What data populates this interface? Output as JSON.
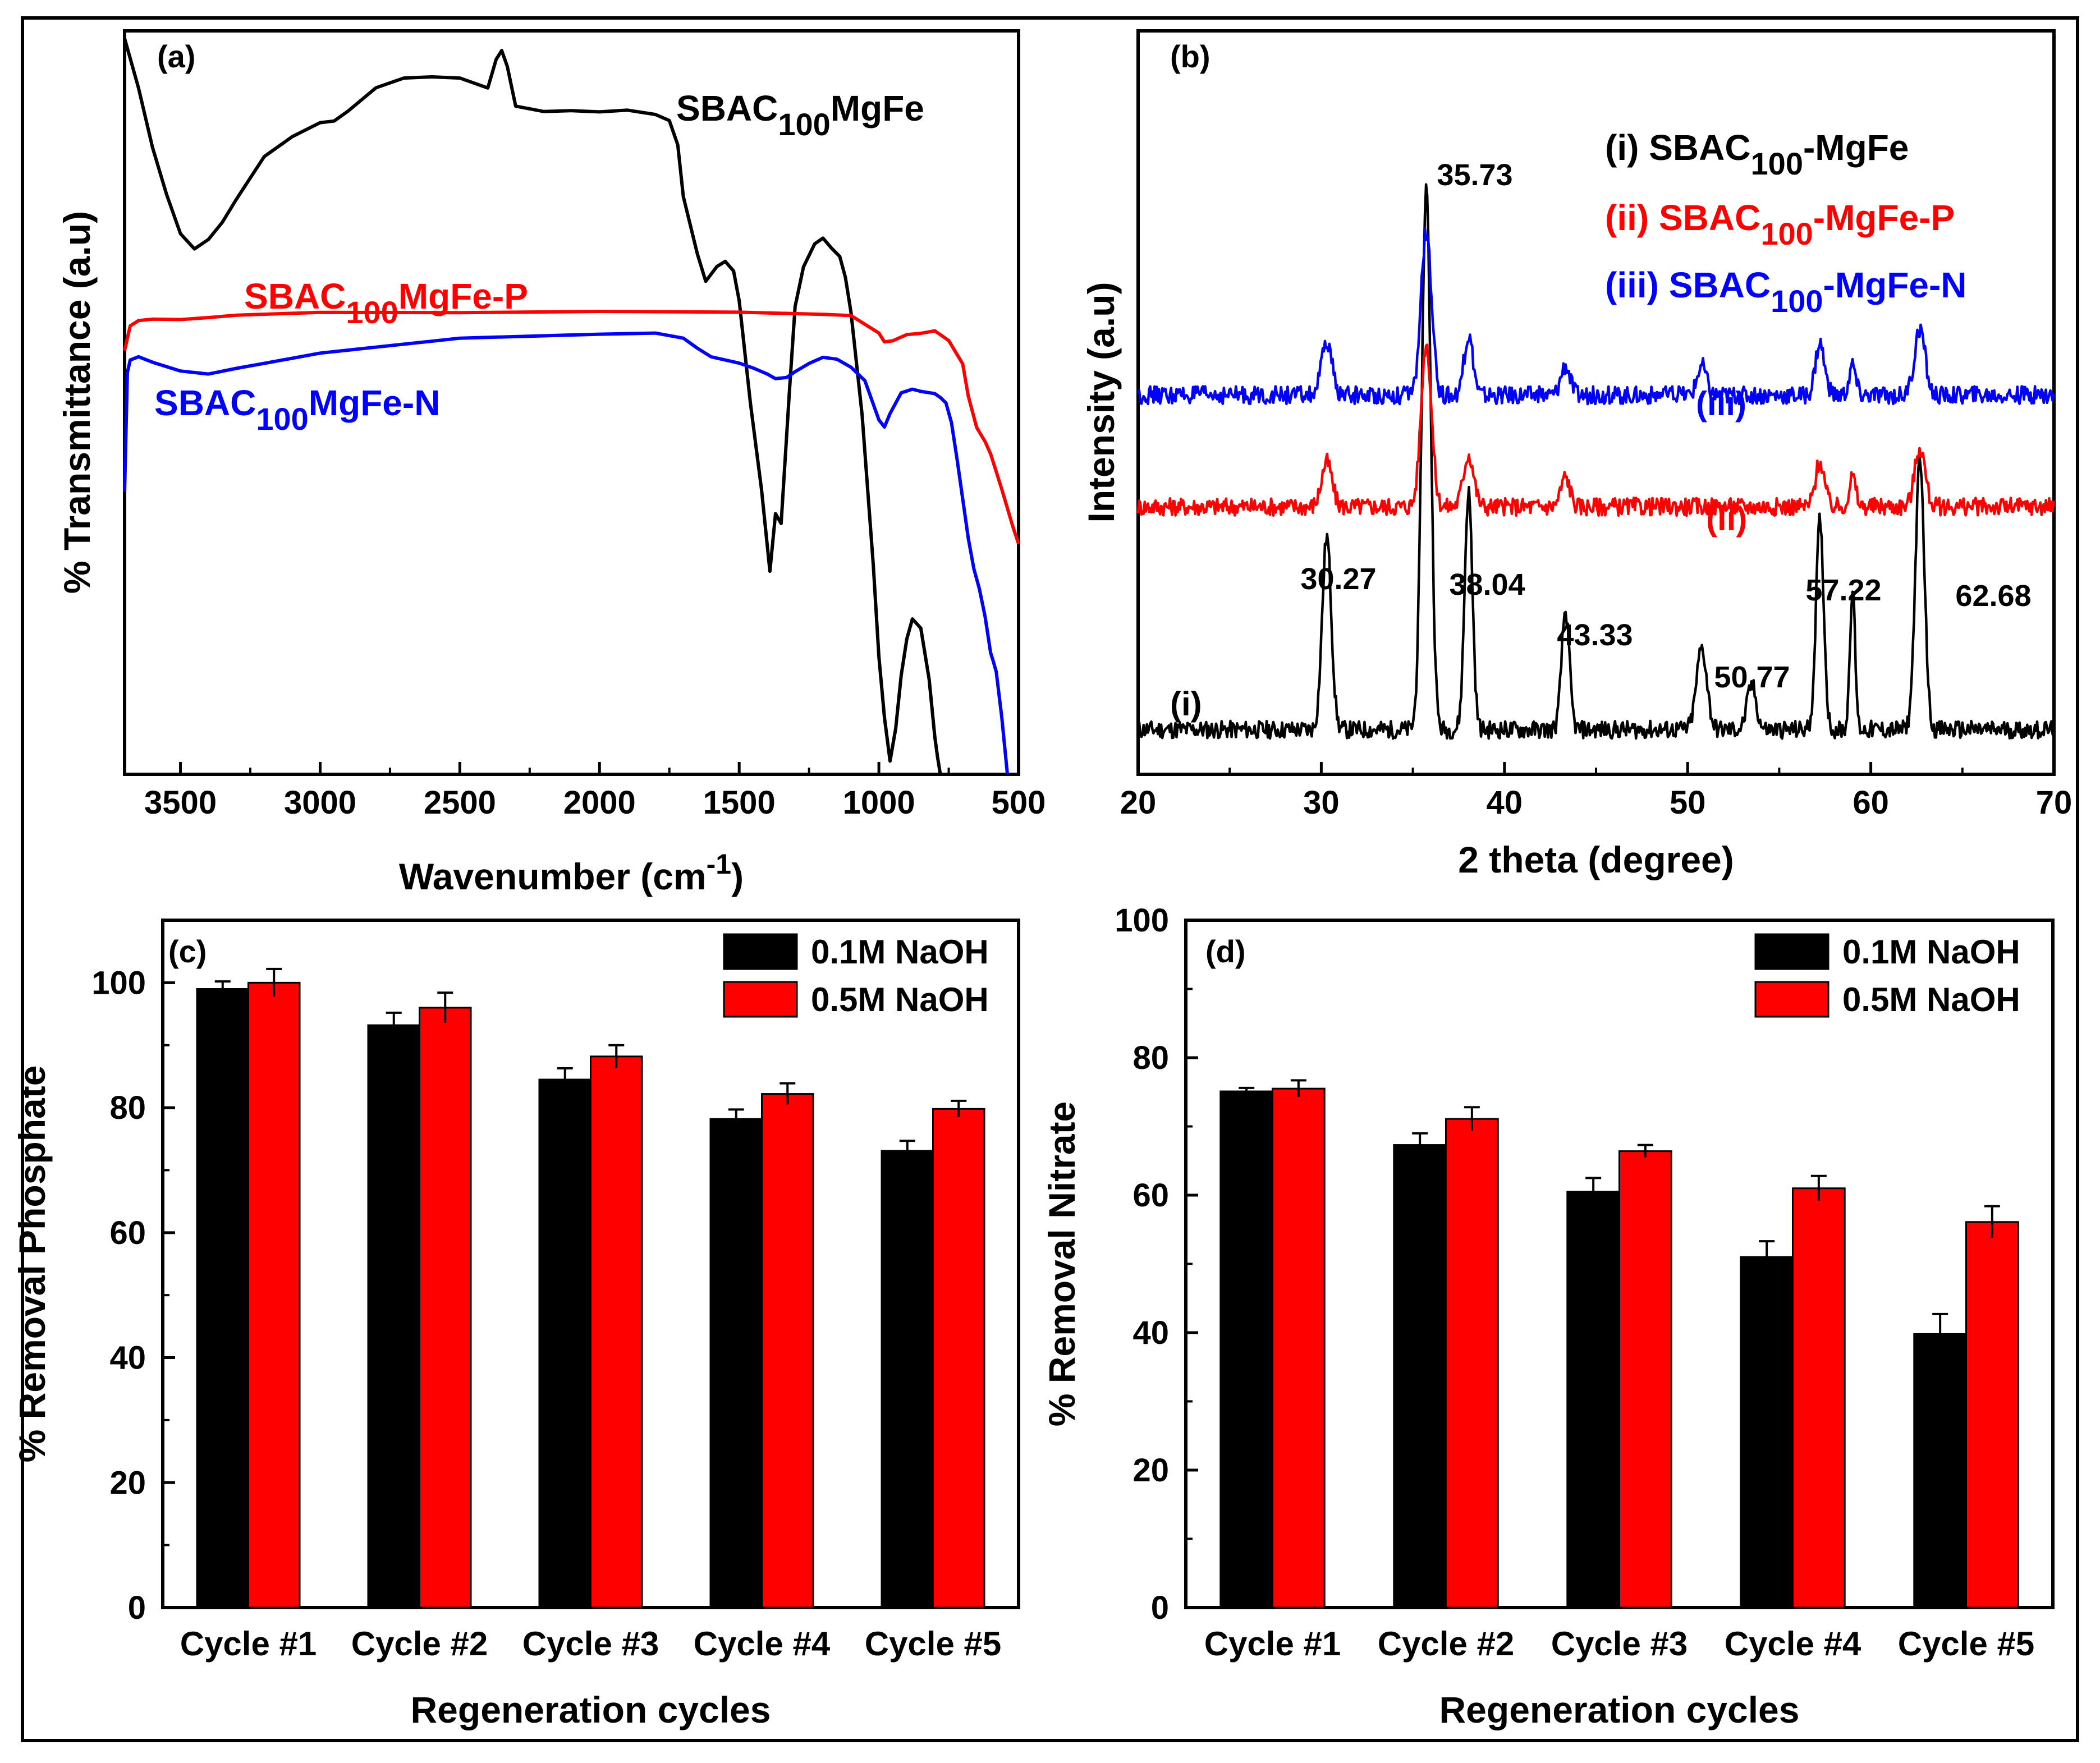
{
  "figure": {
    "panels": [
      "(a)",
      "(b)",
      "(c)",
      "(d)"
    ]
  },
  "chart_data": [
    {
      "panel": "(a)",
      "type": "line",
      "title": "",
      "xlabel_main": "Wavenumber (cm",
      "xlabel_sup": "-1",
      "xlabel_end": ")",
      "ylabel": "% Transmittance (a.u)",
      "xlim": [
        3700,
        500
      ],
      "x_reversed": true,
      "ylim": [
        0,
        100
      ],
      "y_ticks_shown": false,
      "grid": false,
      "xticks": [
        3500,
        3000,
        2500,
        2000,
        1500,
        1000,
        500
      ],
      "series": [
        {
          "name": "SBAC100MgFe",
          "label_main": "SBAC",
          "label_sub": "100",
          "label_end": "MgFe",
          "color": "#000000",
          "x": [
            3700,
            3650,
            3600,
            3550,
            3500,
            3450,
            3400,
            3350,
            3300,
            3200,
            3100,
            3000,
            2950,
            2900,
            2800,
            2700,
            2600,
            2500,
            2400,
            2370,
            2350,
            2330,
            2300,
            2200,
            2100,
            2000,
            1900,
            1800,
            1750,
            1720,
            1700,
            1650,
            1620,
            1580,
            1550,
            1520,
            1500,
            1460,
            1420,
            1390,
            1370,
            1350,
            1320,
            1300,
            1270,
            1230,
            1200,
            1170,
            1140,
            1120,
            1100,
            1060,
            1020,
            1000,
            980,
            960,
            940,
            920,
            900,
            880,
            850,
            820,
            800,
            790,
            780
          ],
          "y": [
            99,
            92,
            84,
            78,
            73,
            71,
            72,
            74,
            77,
            83,
            86,
            88,
            88,
            89,
            92,
            93.5,
            94,
            94,
            92.5,
            96,
            97,
            95,
            90,
            89.5,
            89.5,
            89,
            89,
            88.5,
            88,
            85,
            78,
            70,
            66,
            68,
            69,
            68,
            64,
            50,
            38,
            27,
            35,
            34,
            52,
            63,
            68,
            71,
            72,
            71,
            70,
            67,
            62,
            48,
            28,
            16,
            8,
            2,
            6,
            13,
            18,
            21,
            20,
            13,
            5,
            2,
            0
          ]
        },
        {
          "name": "SBAC100MgFe-P",
          "label_main": "SBAC",
          "label_sub": "100",
          "label_end": "MgFe-P",
          "color": "#ff0000",
          "x": [
            3700,
            3680,
            3650,
            3600,
            3500,
            3400,
            3300,
            3000,
            2500,
            2000,
            1500,
            1200,
            1100,
            1000,
            980,
            950,
            900,
            850,
            800,
            750,
            700,
            680,
            650,
            620,
            600,
            560,
            520,
            500
          ],
          "y": [
            57,
            60,
            61,
            61.5,
            61.5,
            61.5,
            61.5,
            61.8,
            62,
            62.5,
            62.5,
            62,
            61.5,
            59,
            58,
            58.5,
            59.5,
            59.5,
            59.5,
            58,
            55,
            51,
            47,
            45,
            43,
            38,
            33,
            31
          ]
        },
        {
          "name": "SBAC100MgFe-N",
          "label_main": "SBAC",
          "label_sub": "100",
          "label_end": "MgFe-N",
          "color": "#0000ff",
          "x": [
            3700,
            3690,
            3680,
            3650,
            3600,
            3500,
            3400,
            3300,
            3200,
            3000,
            2500,
            2000,
            1800,
            1700,
            1650,
            1600,
            1500,
            1450,
            1400,
            1370,
            1330,
            1300,
            1250,
            1200,
            1150,
            1100,
            1050,
            1000,
            980,
            960,
            920,
            880,
            850,
            800,
            780,
            760,
            740,
            720,
            700,
            680,
            660,
            640,
            620,
            600,
            590,
            580,
            560,
            540
          ],
          "y": [
            38,
            54,
            56,
            56.5,
            55.5,
            54,
            53.5,
            54.5,
            55.5,
            57,
            58.8,
            59,
            59,
            58.5,
            57.5,
            56.5,
            55.5,
            54.5,
            53.5,
            53,
            53.5,
            54.5,
            55.5,
            56,
            55.5,
            54.5,
            53,
            48,
            47,
            48.5,
            51,
            51.5,
            51.5,
            51.5,
            51,
            50,
            47,
            42,
            37,
            32,
            28,
            25,
            21,
            16,
            15,
            14,
            8,
            0
          ]
        }
      ]
    },
    {
      "panel": "(b)",
      "type": "line",
      "title": "",
      "xlabel": "2 theta (degree)",
      "ylabel": "Intensity (a.u)",
      "xlim": [
        20,
        70
      ],
      "ylim": [
        0,
        100
      ],
      "y_ticks_shown": false,
      "grid": false,
      "xticks": [
        20,
        30,
        40,
        50,
        60,
        70
      ],
      "peak_labels": [
        "35.73",
        "30.27",
        "38.04",
        "43.33",
        "50.77",
        "57.22",
        "62.68"
      ],
      "legend": [
        {
          "prefix": "(i) SBAC",
          "sub": "100",
          "suffix": "-MgFe",
          "color": "#000000"
        },
        {
          "prefix": "(ii) SBAC",
          "sub": "100",
          "suffix": "-MgFe-P",
          "color": "#ff0000"
        },
        {
          "prefix": "(iii) SBAC",
          "sub": "100",
          "suffix": "-MgFe-N",
          "color": "#0000ff"
        }
      ],
      "series": [
        {
          "name": "(i) SBAC100-MgFe",
          "tag": "(i)",
          "color": "#000000",
          "baseline": 6,
          "peaks": [
            [
              30.3,
              26,
              0.35
            ],
            [
              35.73,
              73,
              0.35
            ],
            [
              38.04,
              32,
              0.3
            ],
            [
              43.33,
              16,
              0.3
            ],
            [
              50.77,
              11,
              0.4
            ],
            [
              53.5,
              6,
              0.35
            ],
            [
              57.22,
              28,
              0.3
            ],
            [
              59.0,
              19,
              0.2
            ],
            [
              62.68,
              36,
              0.35
            ]
          ]
        },
        {
          "name": "(ii) SBAC100-MgFe-P",
          "tag": "(ii)",
          "color": "#ff0000",
          "baseline": 36,
          "peaks": [
            [
              30.3,
              6,
              0.4
            ],
            [
              35.73,
              22,
              0.4
            ],
            [
              38.04,
              7,
              0.4
            ],
            [
              43.33,
              4,
              0.35
            ],
            [
              57.22,
              6,
              0.35
            ],
            [
              59.0,
              4,
              0.25
            ],
            [
              62.68,
              8,
              0.4
            ]
          ]
        },
        {
          "name": "(iii) SBAC100-MgFe-N",
          "tag": "(iii)",
          "color": "#0000ff",
          "baseline": 51,
          "peaks": [
            [
              30.3,
              7,
              0.4
            ],
            [
              35.73,
              22,
              0.4
            ],
            [
              38.04,
              8,
              0.35
            ],
            [
              43.33,
              4,
              0.35
            ],
            [
              50.77,
              4,
              0.35
            ],
            [
              57.22,
              7,
              0.35
            ],
            [
              59.0,
              4,
              0.25
            ],
            [
              62.68,
              9,
              0.4
            ]
          ]
        }
      ]
    },
    {
      "panel": "(c)",
      "type": "bar",
      "title": "",
      "xlabel": "Regeneration cycles",
      "ylabel": "% Removal Phosphate",
      "ylim": [
        0,
        110
      ],
      "yticks": [
        0,
        20,
        40,
        60,
        80,
        100
      ],
      "grid": false,
      "legend_position": "top-right",
      "categories": [
        "Cycle #1",
        "Cycle #2",
        "Cycle #3",
        "Cycle #4",
        "Cycle #5"
      ],
      "series": [
        {
          "name": "0.1M NaOH",
          "color": "#000000",
          "values": [
            99,
            93.2,
            84.5,
            78.2,
            73.1
          ],
          "errors": [
            1.2,
            2.0,
            1.8,
            1.5,
            1.6
          ]
        },
        {
          "name": "0.5M NaOH",
          "color": "#ff0000",
          "values": [
            100,
            96,
            88.2,
            82.2,
            79.8
          ],
          "errors": [
            2.2,
            2.4,
            1.8,
            1.7,
            1.3
          ]
        }
      ]
    },
    {
      "panel": "(d)",
      "type": "bar",
      "title": "",
      "xlabel": "Regeneration cycles",
      "ylabel": "% Removal Nitrate",
      "ylim": [
        0,
        100
      ],
      "yticks": [
        0,
        20,
        40,
        60,
        80,
        100
      ],
      "grid": false,
      "legend_position": "top-right",
      "categories": [
        "Cycle #1",
        "Cycle #2",
        "Cycle #3",
        "Cycle #4",
        "Cycle #5"
      ],
      "series": [
        {
          "name": "0.1M NaOH",
          "color": "#000000",
          "values": [
            75.1,
            67.3,
            60.5,
            51,
            39.8
          ],
          "errors": [
            0.5,
            1.7,
            2.0,
            2.3,
            2.9
          ]
        },
        {
          "name": "0.5M NaOH",
          "color": "#ff0000",
          "values": [
            75.5,
            71.1,
            66.4,
            61,
            56.1
          ],
          "errors": [
            1.2,
            1.7,
            0.9,
            1.8,
            2.3
          ]
        }
      ]
    }
  ]
}
